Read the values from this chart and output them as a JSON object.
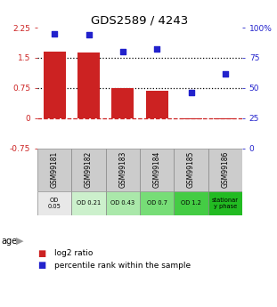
{
  "title": "GDS2589 / 4243",
  "samples": [
    "GSM99181",
    "GSM99182",
    "GSM99183",
    "GSM99184",
    "GSM99185",
    "GSM99186"
  ],
  "log2_ratio": [
    1.65,
    1.62,
    0.75,
    0.68,
    -0.02,
    -0.02
  ],
  "percentile_rank": [
    95,
    94,
    80,
    82,
    46,
    62
  ],
  "bar_color": "#cc2222",
  "dot_color": "#2222cc",
  "left_ylim": [
    -0.75,
    2.25
  ],
  "left_yticks": [
    -0.75,
    0,
    0.75,
    1.5,
    2.25
  ],
  "left_yticklabels": [
    "-0.75",
    "0",
    "0.75",
    "1.5",
    "2.25"
  ],
  "right_ylim": [
    0,
    100
  ],
  "right_yticks": [
    0,
    25,
    50,
    75,
    100
  ],
  "right_yticklabels": [
    "0",
    "25",
    "50",
    "75",
    "100%"
  ],
  "hline_dashed_red": 0,
  "hlines_dotted": [
    0.75,
    1.5
  ],
  "age_labels": [
    "OD\n0.05",
    "OD 0.21",
    "OD 0.43",
    "OD 0.7",
    "OD 1.2",
    "stationar\ny phase"
  ],
  "age_colors": [
    "#e8e8e8",
    "#ccf0cc",
    "#aae8aa",
    "#77dd77",
    "#44cc44",
    "#22bb22"
  ],
  "sample_bg": "#cccccc",
  "bar_width": 0.65
}
